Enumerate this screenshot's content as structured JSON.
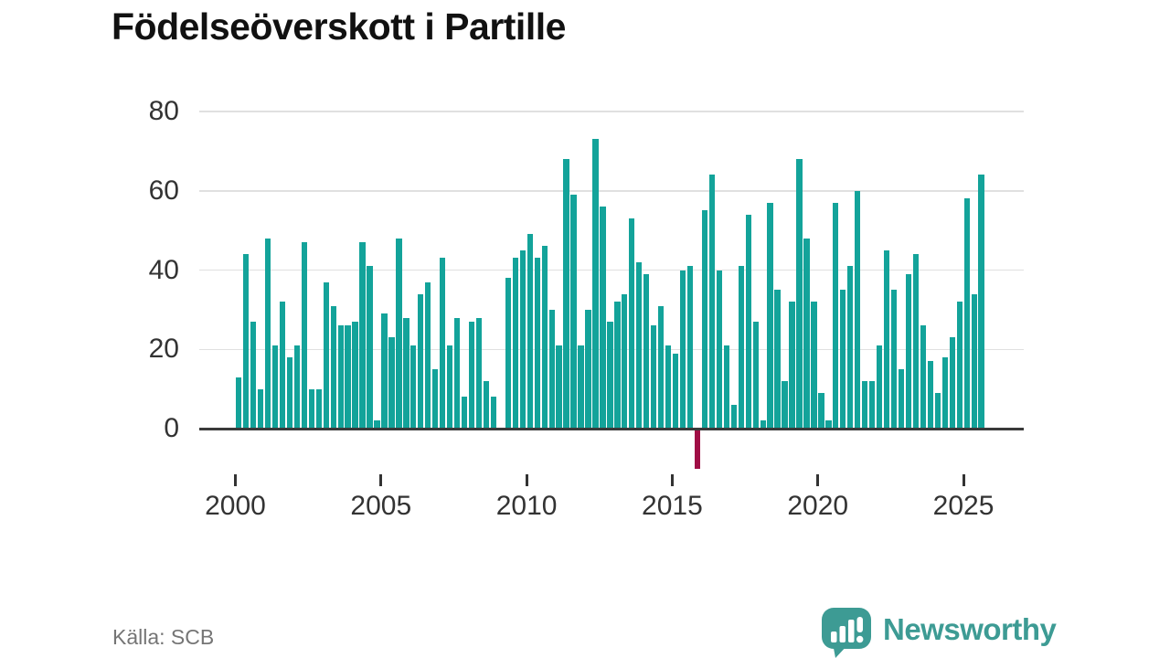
{
  "title": "Födelseöverskott i Partille",
  "source": "Källa: SCB",
  "logo": {
    "text": "Newsworthy"
  },
  "colors": {
    "bar": "#13a39a",
    "negative_bar": "#a00e45",
    "grid": "#e0e0e0",
    "axis": "#3a3a3a",
    "tick_label": "#333333",
    "title": "#111111",
    "source": "#757575",
    "logo": "#3d9b94"
  },
  "chart_data": {
    "type": "bar",
    "title": "Födelseöverskott i Partille",
    "xlabel": "",
    "ylabel": "",
    "x_ticks": [
      "2000",
      "2005",
      "2010",
      "2015",
      "2020",
      "2025"
    ],
    "y_ticks": [
      80,
      60,
      40,
      20,
      0
    ],
    "ylim": [
      -12,
      80
    ],
    "grid": true,
    "legend": false,
    "frequency": "quarterly",
    "categories": [
      "2000Q1",
      "2000Q2",
      "2000Q3",
      "2000Q4",
      "2001Q1",
      "2001Q2",
      "2001Q3",
      "2001Q4",
      "2002Q1",
      "2002Q2",
      "2002Q3",
      "2002Q4",
      "2003Q1",
      "2003Q2",
      "2003Q3",
      "2003Q4",
      "2004Q1",
      "2004Q2",
      "2004Q3",
      "2004Q4",
      "2005Q1",
      "2005Q2",
      "2005Q3",
      "2005Q4",
      "2006Q1",
      "2006Q2",
      "2006Q3",
      "2006Q4",
      "2007Q1",
      "2007Q2",
      "2007Q3",
      "2007Q4",
      "2008Q1",
      "2008Q2",
      "2008Q3",
      "2008Q4",
      "2009Q1",
      "2009Q2",
      "2009Q3",
      "2009Q4",
      "2010Q1",
      "2010Q2",
      "2010Q3",
      "2010Q4",
      "2011Q1",
      "2011Q2",
      "2011Q3",
      "2011Q4",
      "2012Q1",
      "2012Q2",
      "2012Q3",
      "2012Q4",
      "2013Q1",
      "2013Q2",
      "2013Q3",
      "2013Q4",
      "2014Q1",
      "2014Q2",
      "2014Q3",
      "2014Q4",
      "2015Q1",
      "2015Q2",
      "2015Q3",
      "2015Q4",
      "2016Q1",
      "2016Q2",
      "2016Q3",
      "2016Q4",
      "2017Q1",
      "2017Q2",
      "2017Q3",
      "2017Q4",
      "2018Q1",
      "2018Q2",
      "2018Q3",
      "2018Q4",
      "2019Q1",
      "2019Q2",
      "2019Q3",
      "2019Q4",
      "2020Q1",
      "2020Q2",
      "2020Q3",
      "2020Q4",
      "2021Q1",
      "2021Q2",
      "2021Q3",
      "2021Q4",
      "2022Q1",
      "2022Q2",
      "2022Q3",
      "2022Q4",
      "2023Q1",
      "2023Q2",
      "2023Q3",
      "2023Q4",
      "2024Q1",
      "2024Q2",
      "2024Q3",
      "2024Q4",
      "2025Q1",
      "2025Q2",
      "2025Q3"
    ],
    "values": [
      13,
      44,
      27,
      10,
      48,
      21,
      32,
      18,
      21,
      47,
      10,
      10,
      37,
      31,
      26,
      26,
      27,
      47,
      41,
      2,
      29,
      23,
      48,
      28,
      21,
      34,
      37,
      15,
      43,
      21,
      28,
      8,
      27,
      28,
      12,
      8,
      0,
      38,
      43,
      45,
      49,
      43,
      46,
      30,
      21,
      68,
      59,
      21,
      30,
      73,
      56,
      27,
      32,
      34,
      53,
      42,
      39,
      26,
      31,
      21,
      19,
      40,
      41,
      -10,
      55,
      64,
      40,
      21,
      6,
      41,
      54,
      27,
      2,
      57,
      35,
      12,
      32,
      68,
      48,
      32,
      9,
      2,
      57,
      35,
      41,
      60,
      12,
      12,
      21,
      45,
      35,
      15,
      39,
      44,
      26,
      17,
      9,
      18,
      23,
      32,
      58,
      34,
      64
    ]
  }
}
